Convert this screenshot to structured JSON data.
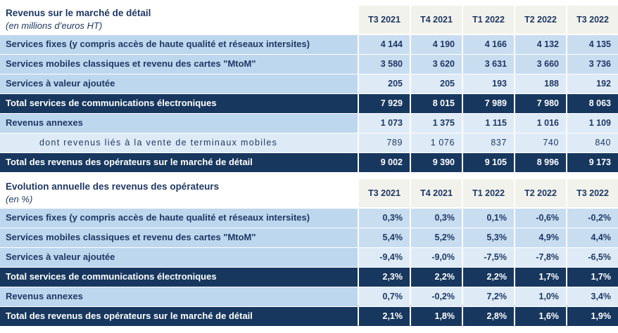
{
  "colors": {
    "navy_total_row": "#17375E",
    "label_blue": "#BDD7EE",
    "cell_blue_medium": "#C9DDF1",
    "cell_blue_pale": "#DEEBF7",
    "header_gray": "#F2F2EC",
    "text_navy": "#1F3864",
    "underline_gray": "#A6A6A6"
  },
  "quarters": [
    "T3 2021",
    "T4 2021",
    "T1 2022",
    "T2 2022",
    "T3 2022"
  ],
  "table1": {
    "title": "Revenus sur le marché de détail",
    "subtitle": "(en millions d’euros HT)",
    "rows": [
      {
        "label": "Services fixes (y compris accès de haute qualité et réseaux intersites)",
        "values": [
          "4 144",
          "4 190",
          "4 166",
          "4 132",
          "4 135"
        ]
      },
      {
        "label": "Services mobiles classiques et revenu des cartes \"MtoM\"",
        "values": [
          "3 580",
          "3 620",
          "3 631",
          "3 660",
          "3 736"
        ]
      },
      {
        "label": "Services à valeur ajoutée",
        "values": [
          "205",
          "205",
          "193",
          "188",
          "192"
        ]
      },
      {
        "label": "Total services de communications électroniques",
        "values": [
          "7 929",
          "8 015",
          "7 989",
          "7 980",
          "8 063"
        ]
      },
      {
        "label": "Revenus annexes",
        "values": [
          "1 073",
          "1 375",
          "1 115",
          "1 016",
          "1 109"
        ]
      },
      {
        "label": "dont revenus liés à la vente de terminaux mobiles",
        "values": [
          "789",
          "1 076",
          "837",
          "740",
          "840"
        ]
      },
      {
        "label": "Total des revenus des opérateurs sur le marché de détail",
        "values": [
          "9 002",
          "9 390",
          "9 105",
          "8 996",
          "9 173"
        ]
      }
    ]
  },
  "table2": {
    "title": "Evolution annuelle des revenus des opérateurs",
    "subtitle": "(en %)",
    "rows": [
      {
        "label": "Services fixes (y compris accès de haute qualité et réseaux intersites)",
        "values": [
          "0,3%",
          "0,3%",
          "0,1%",
          "-0,6%",
          "-0,2%"
        ]
      },
      {
        "label": "Services mobiles classiques et revenu des cartes \"MtoM\"",
        "values": [
          "5,4%",
          "5,2%",
          "5,3%",
          "4,9%",
          "4,4%"
        ]
      },
      {
        "label": "Services à valeur ajoutée",
        "values": [
          "-9,4%",
          "-9,0%",
          "-7,5%",
          "-7,8%",
          "-6,5%"
        ]
      },
      {
        "label": "Total services de communications électroniques",
        "values": [
          "2,3%",
          "2,2%",
          "2,2%",
          "1,7%",
          "1,7%"
        ]
      },
      {
        "label": "Revenus annexes",
        "values": [
          "0,7%",
          "-0,2%",
          "7,2%",
          "1,0%",
          "3,4%"
        ]
      },
      {
        "label": "Total des revenus des opérateurs sur le marché de détail",
        "values": [
          "2,1%",
          "1,8%",
          "2,8%",
          "1,6%",
          "1,9%"
        ]
      }
    ]
  }
}
